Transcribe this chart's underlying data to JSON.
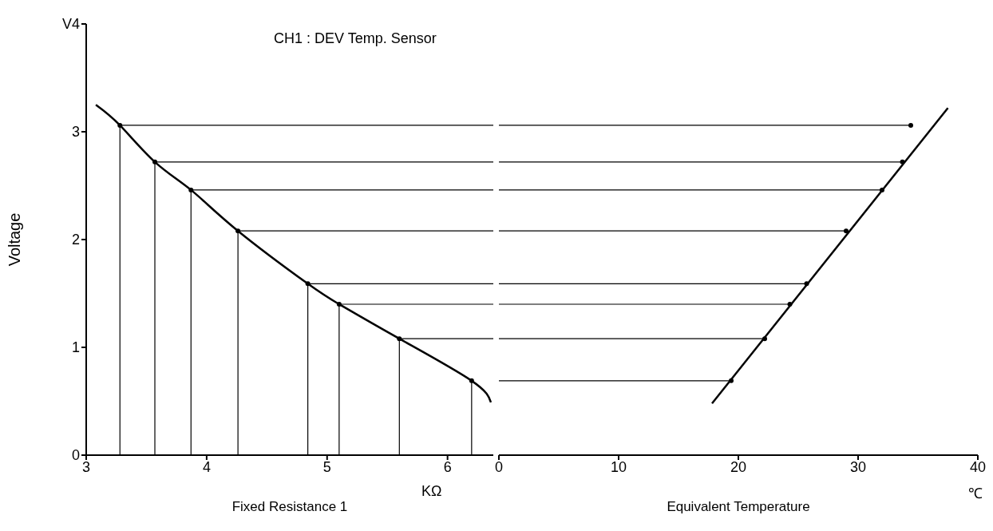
{
  "chart_data": [
    {
      "type": "line",
      "title": "CH1 : DEV Temp. Sensor",
      "xlabel": "Fixed Resistance 1",
      "ylabel": "Voltage",
      "xlim": [
        3,
        6.38
      ],
      "xticks": [
        3,
        4,
        5,
        6
      ],
      "ylim": [
        0,
        4
      ],
      "yticks": [
        0,
        1,
        2,
        3,
        {
          "value": 4,
          "label": "V4"
        }
      ],
      "annotations": [
        "KΩ"
      ],
      "grid": false,
      "legend": false,
      "series": [
        {
          "type": "line",
          "color": "#000000",
          "marker": "none",
          "x": [
            3.08,
            3.28,
            3.57,
            3.87,
            4.26,
            4.84,
            5.1,
            5.6,
            6.2,
            6.36
          ],
          "values": [
            3.25,
            3.06,
            2.72,
            2.46,
            2.08,
            1.59,
            1.4,
            1.08,
            0.69,
            0.49
          ]
        },
        {
          "type": "lollipop",
          "color": "#000000",
          "marker": "circle",
          "x": [
            3.28,
            3.57,
            3.87,
            4.26,
            4.84,
            5.1,
            5.6,
            6.2
          ],
          "values": [
            3.06,
            2.72,
            2.46,
            2.08,
            1.59,
            1.4,
            1.08,
            0.69
          ]
        }
      ],
      "ref_lines": [
        {
          "axis": "y",
          "value": 3.06
        },
        {
          "axis": "y",
          "value": 2.72
        },
        {
          "axis": "y",
          "value": 2.46
        },
        {
          "axis": "y",
          "value": 2.08
        },
        {
          "axis": "y",
          "value": 1.59
        },
        {
          "axis": "y",
          "value": 1.4
        },
        {
          "axis": "y",
          "value": 1.08
        }
      ]
    },
    {
      "type": "line",
      "xlabel": "Equivalent Temperature",
      "xlim": [
        0,
        40
      ],
      "xticks": [
        0,
        10,
        20,
        30,
        40
      ],
      "ylim": [
        0,
        4
      ],
      "tick_labels": "x",
      "annotations": [
        "℃"
      ],
      "grid": false,
      "legend": false,
      "series": [
        {
          "type": "line",
          "color": "#000000",
          "marker": "none",
          "x": [
            17.8,
            37.5
          ],
          "values": [
            0.48,
            3.22
          ]
        },
        {
          "type": "scatter",
          "color": "#000000",
          "marker": "circle",
          "x": [
            34.4,
            33.7,
            32.0,
            29.0,
            25.7,
            24.3,
            22.2,
            19.4
          ],
          "values": [
            3.06,
            2.72,
            2.46,
            2.08,
            1.59,
            1.4,
            1.08,
            0.69
          ]
        }
      ],
      "ref_lines": [
        {
          "axis": "y",
          "value": 3.06
        },
        {
          "axis": "y",
          "value": 2.72
        },
        {
          "axis": "y",
          "value": 2.46
        },
        {
          "axis": "y",
          "value": 2.08
        },
        {
          "axis": "y",
          "value": 1.59
        },
        {
          "axis": "y",
          "value": 1.4
        },
        {
          "axis": "y",
          "value": 1.08
        },
        {
          "axis": "y",
          "value": 0.69
        }
      ]
    }
  ]
}
